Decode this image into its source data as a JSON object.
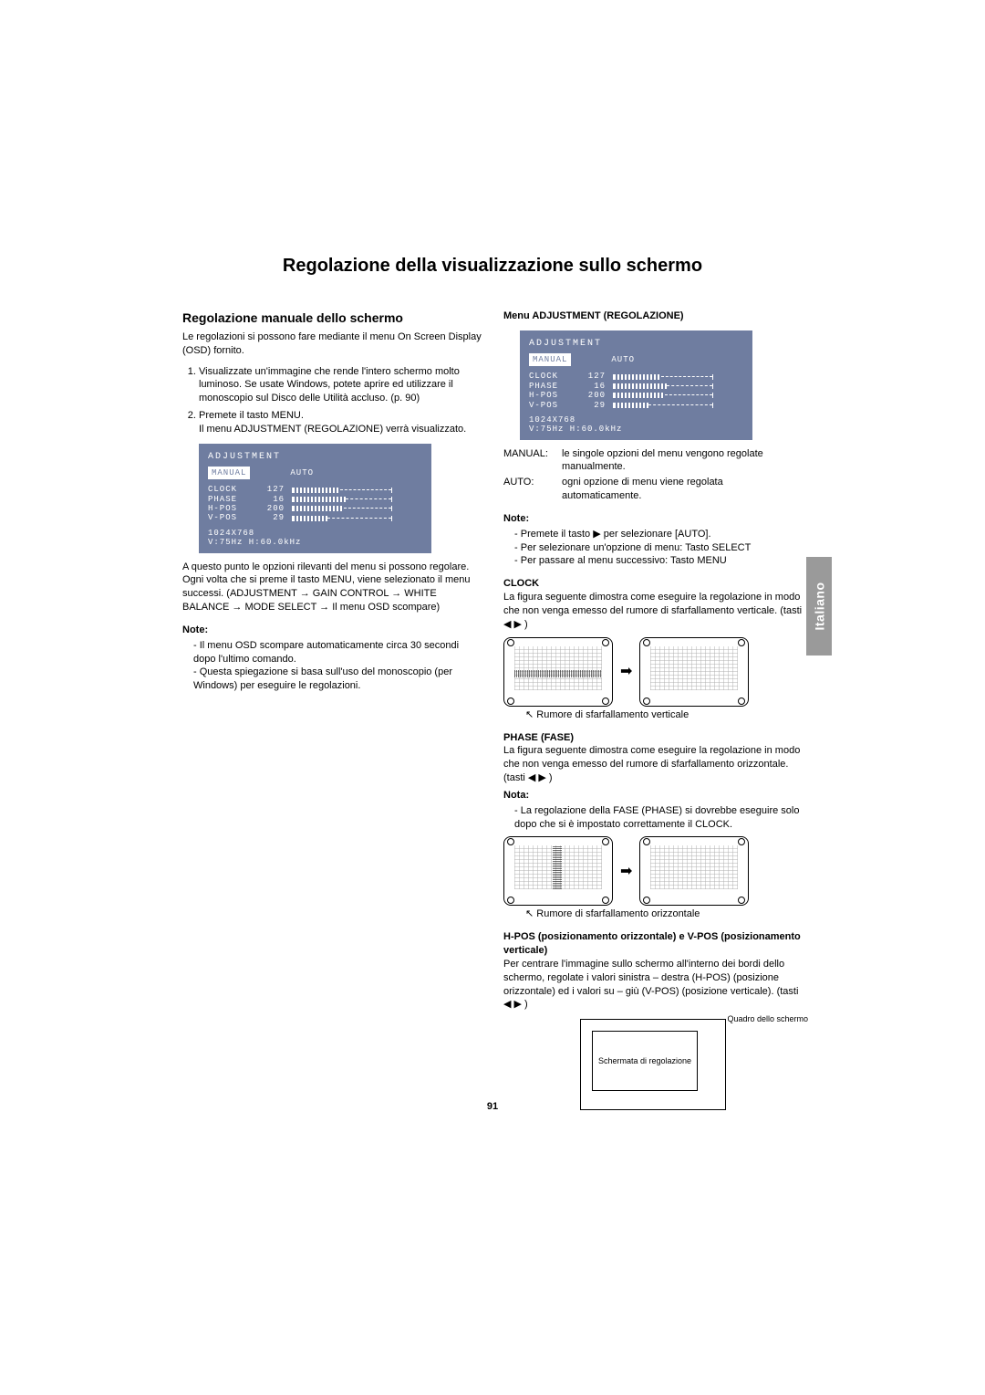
{
  "page_number": "91",
  "side_tab": "Italiano",
  "title": "Regolazione della visualizzazione sullo schermo",
  "left": {
    "heading": "Regolazione manuale dello schermo",
    "intro": "Le regolazioni si possono fare mediante il menu On Screen Display (OSD) fornito.",
    "steps": [
      "Visualizzate un'immagine che rende l'intero schermo molto luminoso. Se usate Windows, potete aprire ed utilizzare il monoscopio sul Disco delle Utilità accluso. (p. 90)",
      "Premete il tasto MENU."
    ],
    "step2_sub": "Il menu ADJUSTMENT (REGOLAZIONE) verrà visualizzato.",
    "after_osd_1": "A questo punto le opzioni rilevanti del menu si possono regolare.",
    "after_osd_2": "Ogni volta che si preme il tasto MENU, viene selezionato il menu successi. (ADJUSTMENT → GAIN CONTROL → WHITE BALANCE → MODE SELECT → Il menu OSD scompare)",
    "note_h": "Note:",
    "notes": [
      "Il menu OSD scompare automaticamente circa 30 secondi dopo l'ultimo comando.",
      "Questa spiegazione si basa sull'uso del monoscopio (per Windows) per eseguire le regolazioni."
    ]
  },
  "right": {
    "menu_h": "Menu ADJUSTMENT (REGOLAZIONE)",
    "def_manual_k": "MANUAL:",
    "def_manual_v": "le singole opzioni del menu vengono regolate manualmente.",
    "def_auto_k": "AUTO:",
    "def_auto_v": "ogni opzione di menu viene regolata automaticamente.",
    "note_h": "Note:",
    "note_items": [
      "Premete il tasto ▶ per selezionare [AUTO].",
      "Per selezionare un'opzione di menu:    Tasto SELECT",
      "Per passare al menu successivo:         Tasto MENU"
    ],
    "clock_h": "CLOCK",
    "clock_p": "La figura seguente dimostra come eseguire la regolazione in modo che non venga emesso del rumore di sfarfallamento verticale. (tasti ◀ ▶ )",
    "clock_cap": "Rumore di sfarfallamento verticale",
    "phase_h": "PHASE (FASE)",
    "phase_p": "La figura seguente dimostra come eseguire la regolazione in modo che non venga emesso del rumore di sfarfallamento orizzontale. (tasti ◀ ▶ )",
    "nota_h": "Nota:",
    "nota_item": "La regolazione della FASE (PHASE) si dovrebbe eseguire solo dopo che si è impostato correttamente il CLOCK.",
    "phase_cap": "Rumore di sfarfallamento orizzontale",
    "hvpos_h": "H-POS (posizionamento orizzontale) e V-POS (posizionamento verticale)",
    "hvpos_p": "Per centrare l'immagine sullo schermo all'interno dei bordi dello schermo, regolate i valori sinistra – destra (H-POS) (posizione orizzontale) ed i valori su – giù (V-POS) (posizione verticale). (tasti ◀ ▶ )",
    "frame_outer_label": "Quadro dello schermo",
    "frame_inner_label": "Schermata di regolazione"
  },
  "osd": {
    "title": "ADJUSTMENT",
    "tab_manual": "MANUAL",
    "tab_auto": "AUTO",
    "rows": [
      {
        "lbl": "CLOCK",
        "val": "127",
        "fill": 52
      },
      {
        "lbl": "PHASE",
        "val": "16",
        "fill": 58
      },
      {
        "lbl": "H-POS",
        "val": "200",
        "fill": 56
      },
      {
        "lbl": "V-POS",
        "val": "29",
        "fill": 38
      }
    ],
    "foot1": "1024X768",
    "foot2": "V:75Hz   H:60.0kHz"
  },
  "colors": {
    "osd_bg": "#6f7da0",
    "tab_bg": "#9a9a9a",
    "page_bg": "#ffffff"
  }
}
